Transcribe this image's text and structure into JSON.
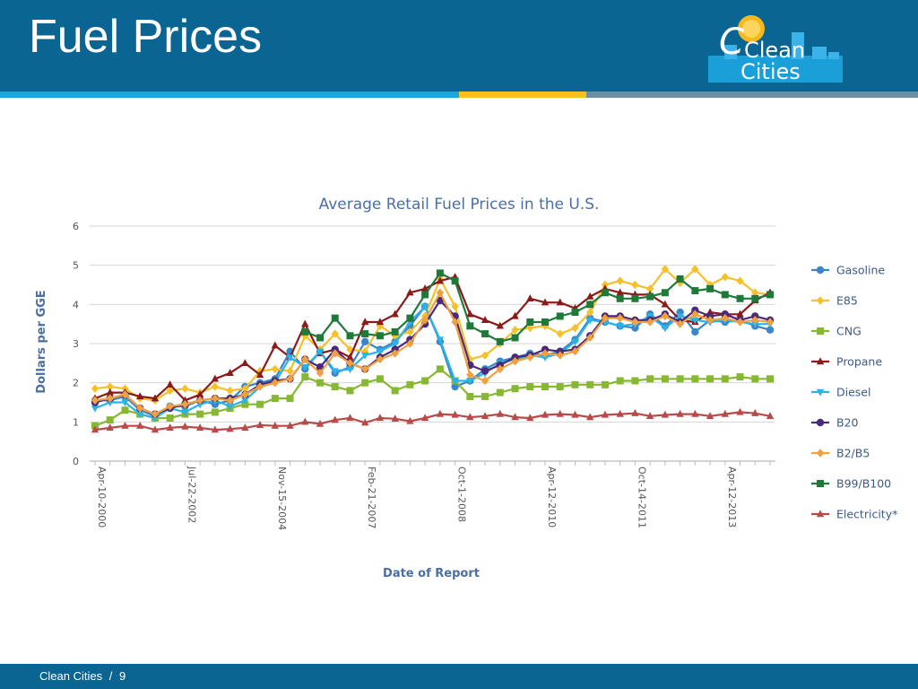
{
  "slide": {
    "title": "Fuel Prices",
    "footer": {
      "org": "Clean Cities",
      "separator": "/",
      "page": "9"
    },
    "logo": {
      "word1": "Clean",
      "word2": "Cities"
    }
  },
  "colors": {
    "header": "#0a6592",
    "stripe_blue": "#1aa6de",
    "stripe_yellow": "#f4c21a",
    "stripe_gray": "#6d8fa6",
    "axis_text": "#4a6fa5"
  },
  "chart_data": {
    "type": "line",
    "title": "Average Retail Fuel Prices in the U.S.",
    "xlabel": "Date of Report",
    "ylabel": "Dollars per GGE",
    "ylim": [
      0,
      6
    ],
    "yticks": [
      "0",
      "1",
      "2",
      "3",
      "4",
      "5",
      "6"
    ],
    "grid": true,
    "legend": "right",
    "x_tick_labels": [
      "Apr-10-2000",
      "Jul-22-2002",
      "Nov-15-2004",
      "Feb-21-2007",
      "Oct-1-2008",
      "Apr-12-2010",
      "Oct-14-2011",
      "Apr-12-2013"
    ],
    "x_tick_indices": [
      0,
      6,
      12,
      18,
      24,
      30,
      36,
      42
    ],
    "n_points": 46,
    "series": [
      {
        "name": "Gasoline",
        "color": "#3a86c8",
        "marker": "circle",
        "values": [
          1.55,
          1.55,
          1.65,
          1.3,
          1.15,
          1.4,
          1.4,
          1.55,
          1.45,
          1.55,
          1.9,
          2.0,
          2.1,
          2.8,
          2.35,
          2.8,
          2.25,
          2.4,
          3.05,
          2.85,
          3.05,
          3.45,
          3.95,
          3.05,
          1.9,
          2.05,
          2.35,
          2.55,
          2.65,
          2.75,
          2.7,
          2.8,
          3.1,
          3.65,
          3.55,
          3.45,
          3.4,
          3.75,
          3.45,
          3.8,
          3.3,
          3.6,
          3.55,
          3.6,
          3.45,
          3.35
        ]
      },
      {
        "name": "E85",
        "color": "#f5c02a",
        "marker": "diamond",
        "values": [
          1.85,
          1.9,
          1.85,
          1.6,
          1.55,
          1.8,
          1.85,
          1.75,
          1.9,
          1.8,
          1.85,
          2.3,
          2.35,
          2.3,
          3.2,
          2.85,
          3.25,
          2.85,
          2.8,
          3.45,
          3.2,
          3.3,
          3.7,
          4.65,
          3.95,
          2.6,
          2.7,
          3.0,
          3.35,
          3.4,
          3.45,
          3.25,
          3.4,
          3.8,
          4.5,
          4.6,
          4.5,
          4.4,
          4.9,
          4.55,
          4.9,
          4.5,
          4.7,
          4.6,
          4.3,
          4.25
        ]
      },
      {
        "name": "CNG",
        "color": "#86b833",
        "marker": "square",
        "values": [
          0.9,
          1.05,
          1.3,
          1.2,
          1.1,
          1.1,
          1.2,
          1.2,
          1.25,
          1.35,
          1.45,
          1.45,
          1.6,
          1.6,
          2.15,
          2.0,
          1.9,
          1.8,
          2.0,
          2.1,
          1.8,
          1.95,
          2.05,
          2.35,
          2.05,
          1.65,
          1.65,
          1.75,
          1.85,
          1.9,
          1.9,
          1.9,
          1.95,
          1.95,
          1.95,
          2.05,
          2.05,
          2.1,
          2.1,
          2.1,
          2.1,
          2.1,
          2.1,
          2.15,
          2.1,
          2.1
        ]
      },
      {
        "name": "Propane",
        "color": "#8b1a1a",
        "marker": "triangle",
        "values": [
          1.6,
          1.75,
          1.75,
          1.65,
          1.6,
          1.95,
          1.55,
          1.7,
          2.1,
          2.25,
          2.5,
          2.2,
          2.95,
          2.65,
          3.5,
          2.75,
          2.85,
          2.65,
          3.55,
          3.55,
          3.75,
          4.3,
          4.4,
          4.6,
          4.7,
          3.75,
          3.6,
          3.45,
          3.7,
          4.15,
          4.05,
          4.05,
          3.9,
          4.2,
          4.4,
          4.3,
          4.25,
          4.25,
          4.0,
          3.6,
          3.55,
          3.8,
          3.75,
          3.75,
          4.1,
          4.3
        ]
      },
      {
        "name": "Diesel",
        "color": "#2bb3e6",
        "marker": "triangle-down",
        "values": [
          1.35,
          1.5,
          1.5,
          1.2,
          1.1,
          1.35,
          1.25,
          1.45,
          1.55,
          1.4,
          1.55,
          1.9,
          2.0,
          2.65,
          2.4,
          2.8,
          2.3,
          2.35,
          2.7,
          2.8,
          3.0,
          3.55,
          3.95,
          3.1,
          2.05,
          2.05,
          2.25,
          2.5,
          2.6,
          2.7,
          2.65,
          2.75,
          3.05,
          3.6,
          3.55,
          3.45,
          3.5,
          3.7,
          3.4,
          3.7,
          3.6,
          3.55,
          3.6,
          3.55,
          3.5,
          3.5
        ]
      },
      {
        "name": "B20",
        "color": "#4a2a7a",
        "marker": "circle",
        "values": [
          1.5,
          1.6,
          1.7,
          1.35,
          1.2,
          1.35,
          1.45,
          1.55,
          1.6,
          1.6,
          1.7,
          1.95,
          2.05,
          2.1,
          2.6,
          2.4,
          2.85,
          2.5,
          2.35,
          2.65,
          2.85,
          3.1,
          3.5,
          4.1,
          3.7,
          2.45,
          2.3,
          2.45,
          2.65,
          2.7,
          2.85,
          2.8,
          2.85,
          3.2,
          3.7,
          3.7,
          3.6,
          3.6,
          3.75,
          3.55,
          3.85,
          3.7,
          3.75,
          3.6,
          3.7,
          3.6
        ]
      },
      {
        "name": "B2/B5",
        "color": "#f0a040",
        "marker": "diamond",
        "values": [
          1.55,
          1.6,
          1.7,
          1.35,
          1.2,
          1.4,
          1.45,
          1.55,
          1.6,
          1.55,
          1.7,
          1.9,
          2.0,
          2.1,
          2.6,
          2.25,
          2.75,
          2.5,
          2.35,
          2.6,
          2.75,
          3.0,
          3.6,
          4.3,
          3.55,
          2.2,
          2.05,
          2.35,
          2.55,
          2.65,
          2.75,
          2.7,
          2.8,
          3.15,
          3.65,
          3.65,
          3.55,
          3.55,
          3.7,
          3.5,
          3.75,
          3.6,
          3.65,
          3.55,
          3.6,
          3.55
        ]
      },
      {
        "name": "B99/B100",
        "color": "#1f7a3a",
        "marker": "square",
        "values": [
          null,
          null,
          null,
          null,
          null,
          null,
          null,
          null,
          null,
          null,
          null,
          null,
          null,
          null,
          3.3,
          3.15,
          3.65,
          3.2,
          3.25,
          3.2,
          3.3,
          3.65,
          4.25,
          4.8,
          4.6,
          3.45,
          3.25,
          3.05,
          3.15,
          3.55,
          3.55,
          3.7,
          3.8,
          4.0,
          4.3,
          4.15,
          4.15,
          4.2,
          4.3,
          4.65,
          4.35,
          4.4,
          4.25,
          4.15,
          4.15,
          4.25
        ]
      },
      {
        "name": "Electricity*",
        "color": "#b84a4a",
        "marker": "triangle",
        "values": [
          0.8,
          0.85,
          0.9,
          0.9,
          0.8,
          0.85,
          0.88,
          0.85,
          0.8,
          0.82,
          0.85,
          0.92,
          0.9,
          0.9,
          1.0,
          0.95,
          1.05,
          1.1,
          0.98,
          1.1,
          1.08,
          1.02,
          1.1,
          1.2,
          1.18,
          1.12,
          1.15,
          1.2,
          1.12,
          1.1,
          1.18,
          1.2,
          1.18,
          1.12,
          1.18,
          1.2,
          1.22,
          1.15,
          1.18,
          1.2,
          1.2,
          1.15,
          1.2,
          1.25,
          1.22,
          1.15
        ]
      }
    ]
  }
}
